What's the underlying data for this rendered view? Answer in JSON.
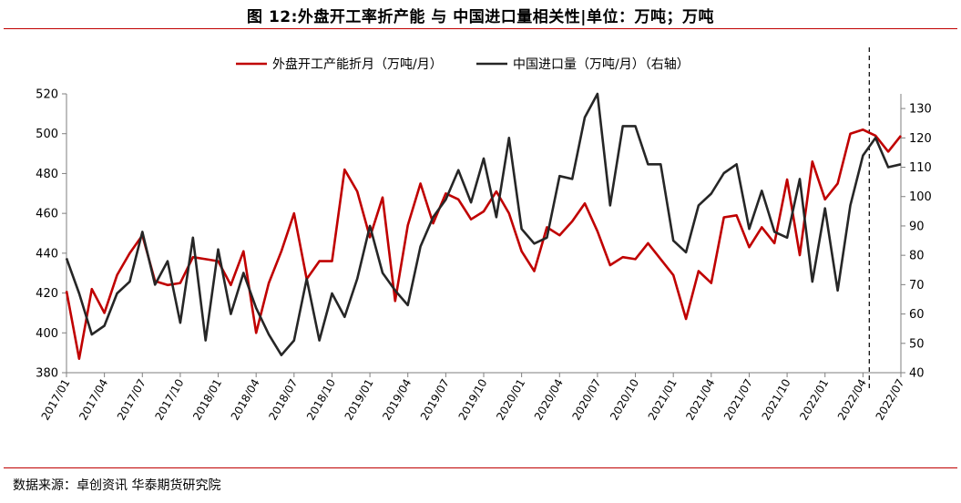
{
  "title": "图 12:外盘开工率折产能 与 中国进口量相关性|单位：万吨；万吨",
  "source": "数据来源：卓创资讯  华泰期货研究院",
  "colors": {
    "series1": "#c00000",
    "series2": "#262626",
    "rule": "#c00000"
  },
  "chart_data": {
    "type": "line",
    "x": [
      "2017/01",
      "2017/02",
      "2017/03",
      "2017/04",
      "2017/05",
      "2017/06",
      "2017/07",
      "2017/08",
      "2017/09",
      "2017/10",
      "2017/11",
      "2017/12",
      "2018/01",
      "2018/02",
      "2018/03",
      "2018/04",
      "2018/05",
      "2018/06",
      "2018/07",
      "2018/08",
      "2018/09",
      "2018/10",
      "2018/11",
      "2018/12",
      "2019/01",
      "2019/02",
      "2019/03",
      "2019/04",
      "2019/05",
      "2019/06",
      "2019/07",
      "2019/08",
      "2019/09",
      "2019/10",
      "2019/11",
      "2019/12",
      "2020/01",
      "2020/02",
      "2020/03",
      "2020/04",
      "2020/05",
      "2020/06",
      "2020/07",
      "2020/08",
      "2020/09",
      "2020/10",
      "2020/11",
      "2020/12",
      "2021/01",
      "2021/02",
      "2021/03",
      "2021/04",
      "2021/05",
      "2021/06",
      "2021/07",
      "2021/08",
      "2021/09",
      "2021/10",
      "2021/11",
      "2021/12",
      "2022/01",
      "2022/02",
      "2022/03",
      "2022/04",
      "2022/05",
      "2022/06",
      "2022/07"
    ],
    "x_tick_labels": [
      "2017/01",
      "2017/04",
      "2017/07",
      "2017/10",
      "2018/01",
      "2018/04",
      "2018/07",
      "2018/10",
      "2019/01",
      "2019/04",
      "2019/07",
      "2019/10",
      "2020/01",
      "2020/04",
      "2020/07",
      "2020/10",
      "2021/01",
      "2021/04",
      "2021/07",
      "2021/10",
      "2022/01",
      "2022/04",
      "2022/07"
    ],
    "series": [
      {
        "name": "外盘开工产能折月（万吨/月）",
        "axis": "left",
        "values": [
          421,
          387,
          422,
          410,
          429,
          440,
          449,
          426,
          424,
          425,
          438,
          437,
          436,
          424,
          441,
          400,
          425,
          441,
          460,
          427,
          436,
          436,
          482,
          471,
          448,
          468,
          416,
          454,
          475,
          455,
          470,
          467,
          457,
          461,
          471,
          460,
          441,
          431,
          453,
          449,
          456,
          465,
          451,
          434,
          438,
          437,
          445,
          437,
          429,
          407,
          431,
          425,
          458,
          459,
          443,
          453,
          445,
          477,
          439,
          486,
          467,
          475,
          500,
          502,
          499,
          491,
          499
        ]
      },
      {
        "name": "中国进口量（万吨/月）（右轴）",
        "axis": "right",
        "values": [
          79,
          67,
          53,
          56,
          67,
          71,
          88,
          70,
          78,
          57,
          86,
          51,
          82,
          60,
          74,
          62,
          53,
          46,
          51,
          72,
          51,
          67,
          59,
          72,
          90,
          74,
          68,
          63,
          83,
          93,
          99,
          109,
          98,
          113,
          93,
          120,
          89,
          84,
          86,
          107,
          106,
          127,
          135,
          97,
          124,
          124,
          111,
          111,
          85,
          81,
          97,
          101,
          108,
          111,
          89,
          102,
          88,
          86,
          106,
          71,
          96,
          68,
          97,
          114,
          120,
          110,
          111
        ]
      }
    ],
    "y_left": {
      "min": 380,
      "max": 520,
      "ticks": [
        380,
        400,
        420,
        440,
        460,
        480,
        500,
        520
      ]
    },
    "y_right": {
      "min": 40,
      "max": 135,
      "ticks": [
        40,
        50,
        60,
        70,
        80,
        90,
        100,
        110,
        120,
        130
      ]
    },
    "vertical_marker": {
      "after": "2022/04",
      "style": "dashed"
    },
    "legend_position": "top-center",
    "grid": false
  }
}
